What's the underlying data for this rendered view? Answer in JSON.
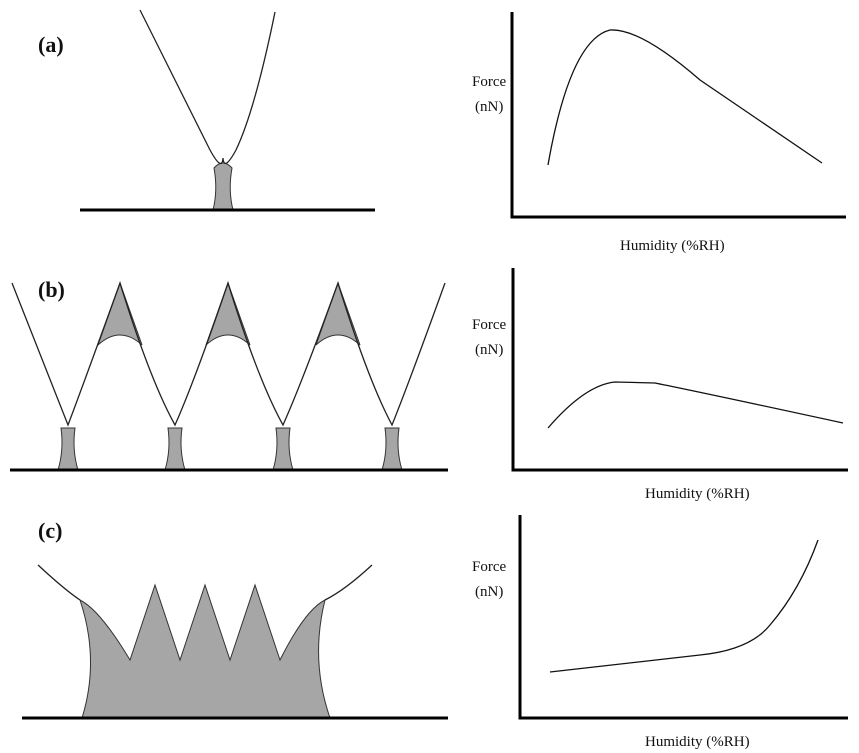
{
  "panels": [
    {
      "label": "(a)",
      "y_label": [
        "Force",
        "(nN)"
      ],
      "x_label": "Humidity (%RH)"
    },
    {
      "label": "(b)",
      "y_label": [
        "Force",
        "(nN)"
      ],
      "x_label": "Humidity (%RH)"
    },
    {
      "label": "(c)",
      "y_label": [
        "Force",
        "(nN)"
      ],
      "x_label": "Humidity (%RH)"
    }
  ]
}
